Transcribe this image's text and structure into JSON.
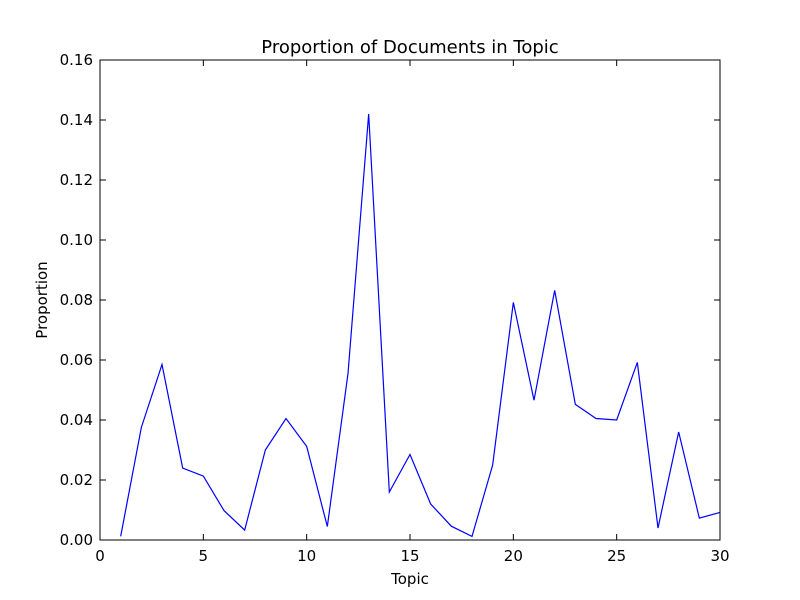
{
  "chart_data": {
    "type": "line",
    "title": "Proportion of Documents in Topic",
    "xlabel": "Topic",
    "ylabel": "Proportion",
    "xlim": [
      0,
      30
    ],
    "ylim": [
      0,
      0.16
    ],
    "x_ticks": [
      "0",
      "5",
      "10",
      "15",
      "20",
      "25",
      "30"
    ],
    "y_ticks": [
      "0.00",
      "0.02",
      "0.04",
      "0.06",
      "0.08",
      "0.10",
      "0.12",
      "0.14",
      "0.16"
    ],
    "grid": false,
    "line_color": "#0000ff",
    "series": [
      {
        "x": [
          1,
          2,
          3,
          4,
          5,
          6,
          7,
          8,
          9,
          10,
          11,
          12,
          13,
          14,
          15,
          16,
          17,
          18,
          19,
          20,
          21,
          22,
          23,
          24,
          25,
          26,
          27,
          28,
          29,
          30
        ],
        "values": [
          0.0012,
          0.0375,
          0.0585,
          0.024,
          0.0213,
          0.0098,
          0.0033,
          0.03,
          0.0405,
          0.0312,
          0.0045,
          0.0555,
          0.142,
          0.016,
          0.0285,
          0.012,
          0.0046,
          0.0012,
          0.025,
          0.0792,
          0.0466,
          0.0832,
          0.0452,
          0.0405,
          0.04,
          0.0592,
          0.004,
          0.036,
          0.0073,
          0.0092
        ]
      }
    ]
  }
}
